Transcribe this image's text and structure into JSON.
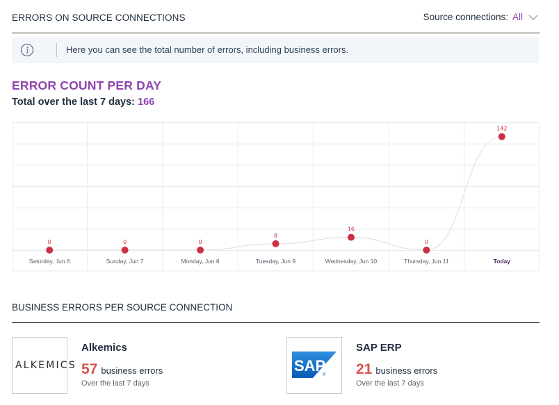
{
  "header": {
    "title": "ERRORS ON SOURCE CONNECTIONS",
    "filter_label": "Source connections:",
    "filter_value": "All"
  },
  "info": {
    "text": "Here you can see the total number of errors, including business errors."
  },
  "error_section": {
    "title": "ERROR COUNT PER DAY",
    "total_label": "Total over the last 7 days:",
    "total_value": "166"
  },
  "chart_data": {
    "type": "line",
    "categories": [
      "Saturday, Jun 6",
      "Sunday, Jun 7",
      "Monday, Jun 8",
      "Tuesday, Jun 9",
      "Wednesday, Jun 10",
      "Thursday, Jun 11",
      "Today"
    ],
    "highlight_category": "Today",
    "values": [
      0,
      0,
      0,
      8,
      16,
      0,
      142
    ],
    "ylim": [
      0,
      160
    ],
    "grid": true,
    "point_color": "#cc2f45",
    "today_color": "#4a235a"
  },
  "business_section": {
    "title": "BUSINESS ERRORS PER SOURCE CONNECTION",
    "cards": [
      {
        "name": "Alkemics",
        "count": "57",
        "count_label": "business errors",
        "period": "Over the last 7 days",
        "logo_text": "ALKEMICS",
        "logo_icon": "alkemics-logo"
      },
      {
        "name": "SAP ERP",
        "count": "21",
        "count_label": "business errors",
        "period": "Over the last 7 days",
        "logo_text": "SAP",
        "logo_icon": "sap-logo"
      }
    ]
  },
  "colors": {
    "accent": "#8e44ad",
    "error": "#d9534f",
    "info_bg": "#f2f6fa"
  }
}
